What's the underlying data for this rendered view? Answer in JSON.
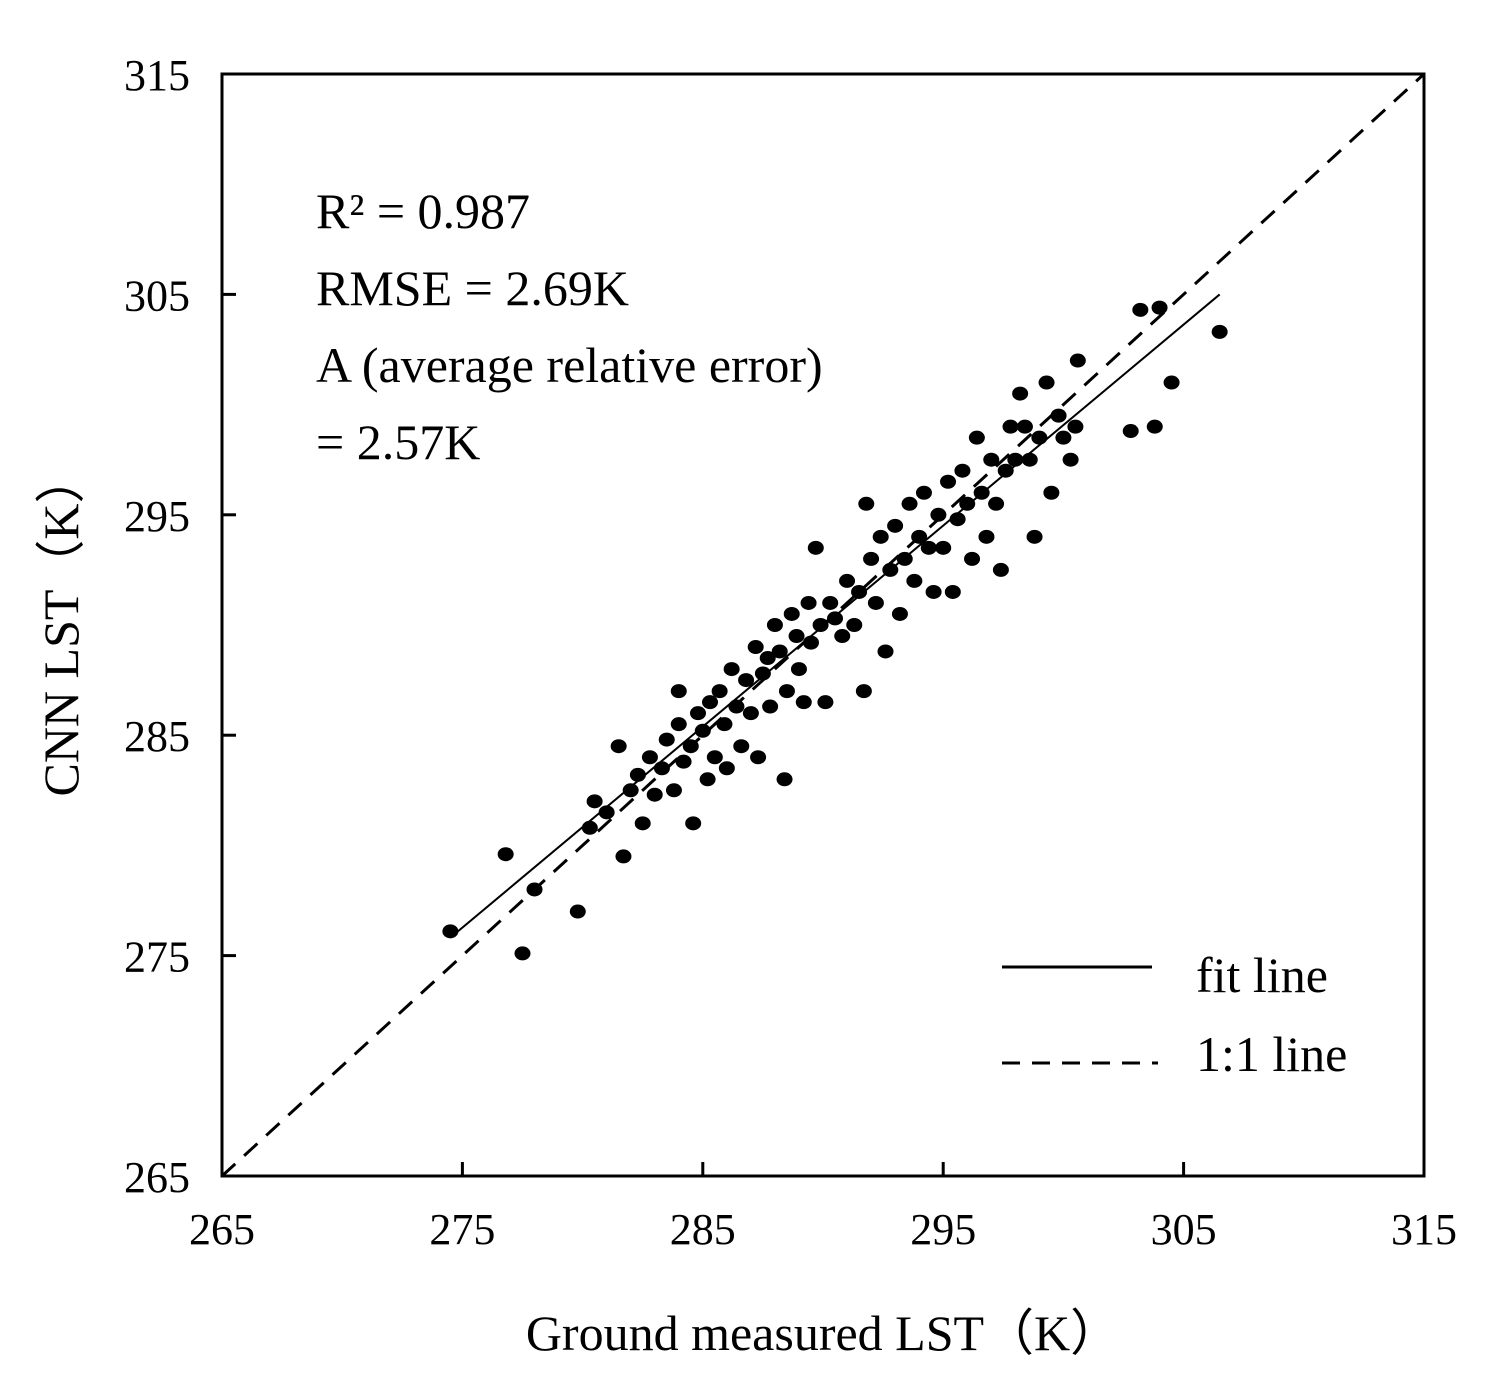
{
  "chart_data": {
    "type": "scatter",
    "xlabel": "Ground measured  LST（K）",
    "ylabel": "CNN LST（K）",
    "xlim": [
      265,
      315
    ],
    "ylim": [
      265,
      315
    ],
    "xticks": [
      "265",
      "275",
      "285",
      "295",
      "305",
      "315"
    ],
    "yticks": [
      "265",
      "275",
      "285",
      "295",
      "305",
      "315"
    ],
    "annotations": [
      "R² = 0.987",
      "RMSE = 2.69K",
      "A (average relative error)",
      "= 2.57K"
    ],
    "legend": {
      "position": "bottom-right",
      "entries": [
        {
          "label": "fit line",
          "style": "solid"
        },
        {
          "label": "1:1 line",
          "style": "dashed"
        }
      ]
    },
    "fit_line": {
      "slope": 0.912,
      "intercept": 25.47,
      "x_range": [
        274.5,
        306.5
      ]
    },
    "one_to_one_line": {
      "x_range": [
        265,
        315
      ]
    },
    "series": [
      {
        "name": "points",
        "color": "#000000",
        "points": [
          [
            274.5,
            276.1
          ],
          [
            276.8,
            279.6
          ],
          [
            277.5,
            275.1
          ],
          [
            278.0,
            278.0
          ],
          [
            279.8,
            277.0
          ],
          [
            280.3,
            280.8
          ],
          [
            280.5,
            282.0
          ],
          [
            281.0,
            281.5
          ],
          [
            281.5,
            284.5
          ],
          [
            281.7,
            279.5
          ],
          [
            282.0,
            282.5
          ],
          [
            282.3,
            283.2
          ],
          [
            282.5,
            281.0
          ],
          [
            282.8,
            284.0
          ],
          [
            283.0,
            282.3
          ],
          [
            283.3,
            283.5
          ],
          [
            283.5,
            284.8
          ],
          [
            283.8,
            282.5
          ],
          [
            284.0,
            285.5
          ],
          [
            284.0,
            287.0
          ],
          [
            284.2,
            283.8
          ],
          [
            284.5,
            284.5
          ],
          [
            284.6,
            281.0
          ],
          [
            284.8,
            286.0
          ],
          [
            285.0,
            285.2
          ],
          [
            285.2,
            283.0
          ],
          [
            285.3,
            286.5
          ],
          [
            285.5,
            284.0
          ],
          [
            285.7,
            287.0
          ],
          [
            285.9,
            285.5
          ],
          [
            286.0,
            283.5
          ],
          [
            286.2,
            288.0
          ],
          [
            286.4,
            286.3
          ],
          [
            286.6,
            284.5
          ],
          [
            286.8,
            287.5
          ],
          [
            287.0,
            286.0
          ],
          [
            287.2,
            289.0
          ],
          [
            287.3,
            284.0
          ],
          [
            287.5,
            287.8
          ],
          [
            287.7,
            288.5
          ],
          [
            287.8,
            286.3
          ],
          [
            288.0,
            290.0
          ],
          [
            288.2,
            288.8
          ],
          [
            288.4,
            283.0
          ],
          [
            288.5,
            287.0
          ],
          [
            288.7,
            290.5
          ],
          [
            288.9,
            289.5
          ],
          [
            289.0,
            288.0
          ],
          [
            289.2,
            286.5
          ],
          [
            289.4,
            291.0
          ],
          [
            289.5,
            289.2
          ],
          [
            289.7,
            293.5
          ],
          [
            289.9,
            290.0
          ],
          [
            290.1,
            286.5
          ],
          [
            290.3,
            291.0
          ],
          [
            290.5,
            290.3
          ],
          [
            290.8,
            289.5
          ],
          [
            291.0,
            292.0
          ],
          [
            291.3,
            290.0
          ],
          [
            291.5,
            291.5
          ],
          [
            291.7,
            287.0
          ],
          [
            291.8,
            295.5
          ],
          [
            292.0,
            293.0
          ],
          [
            292.2,
            291.0
          ],
          [
            292.4,
            294.0
          ],
          [
            292.6,
            288.8
          ],
          [
            292.8,
            292.5
          ],
          [
            293.0,
            294.5
          ],
          [
            293.2,
            290.5
          ],
          [
            293.4,
            293.0
          ],
          [
            293.6,
            295.5
          ],
          [
            293.8,
            292.0
          ],
          [
            294.0,
            294.0
          ],
          [
            294.2,
            296.0
          ],
          [
            294.4,
            293.5
          ],
          [
            294.6,
            291.5
          ],
          [
            294.8,
            295.0
          ],
          [
            295.0,
            293.5
          ],
          [
            295.2,
            296.5
          ],
          [
            295.4,
            291.5
          ],
          [
            295.6,
            294.8
          ],
          [
            295.8,
            297.0
          ],
          [
            296.0,
            295.5
          ],
          [
            296.2,
            293.0
          ],
          [
            296.4,
            298.5
          ],
          [
            296.6,
            296.0
          ],
          [
            296.8,
            294.0
          ],
          [
            297.0,
            297.5
          ],
          [
            297.2,
            295.5
          ],
          [
            297.4,
            292.5
          ],
          [
            297.6,
            297.0
          ],
          [
            297.8,
            299.0
          ],
          [
            298.0,
            297.5
          ],
          [
            298.2,
            300.5
          ],
          [
            298.4,
            299.0
          ],
          [
            298.6,
            297.5
          ],
          [
            298.8,
            294.0
          ],
          [
            299.0,
            298.5
          ],
          [
            299.3,
            301.0
          ],
          [
            299.5,
            296.0
          ],
          [
            299.8,
            299.5
          ],
          [
            300.0,
            298.5
          ],
          [
            300.3,
            297.5
          ],
          [
            300.5,
            299.0
          ],
          [
            300.6,
            302.0
          ],
          [
            302.8,
            298.8
          ],
          [
            303.2,
            304.3
          ],
          [
            303.8,
            299.0
          ],
          [
            304.0,
            304.4
          ],
          [
            304.5,
            301.0
          ],
          [
            306.5,
            303.3
          ]
        ]
      }
    ]
  }
}
